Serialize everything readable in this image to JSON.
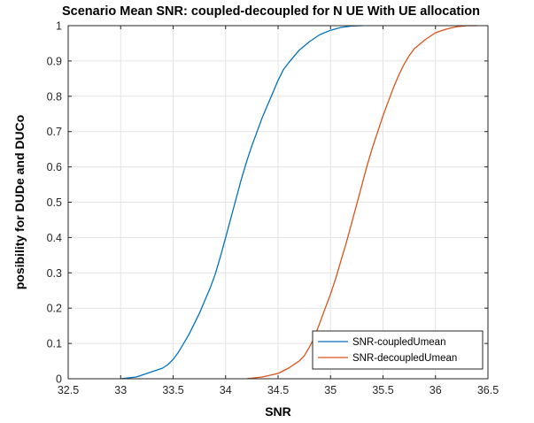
{
  "chart_data": {
    "type": "line",
    "title": "Scenario Mean SNR: coupled-decoupled for N UE With UE allocation",
    "xlabel": "SNR",
    "ylabel": "posibility for DUDe and DUCo",
    "xlim": [
      32.5,
      36.5
    ],
    "ylim": [
      0,
      1
    ],
    "xticks": [
      32.5,
      33,
      33.5,
      34,
      34.5,
      35,
      35.5,
      36,
      36.5
    ],
    "xtick_labels": [
      "32.5",
      "33",
      "33.5",
      "34",
      "34.5",
      "35",
      "35.5",
      "36",
      "36.5"
    ],
    "yticks": [
      0,
      0.1,
      0.2,
      0.3,
      0.4,
      0.5,
      0.6,
      0.7,
      0.8,
      0.9,
      1
    ],
    "ytick_labels": [
      "0",
      "0.1",
      "0.2",
      "0.3",
      "0.4",
      "0.5",
      "0.6",
      "0.7",
      "0.8",
      "0.9",
      "1"
    ],
    "grid": true,
    "legend_position": "bottom-right",
    "series": [
      {
        "name": "SNR-coupledUmean",
        "color": "#0072BD",
        "x": [
          33.0,
          33.15,
          33.3,
          33.4,
          33.45,
          33.5,
          33.55,
          33.6,
          33.65,
          33.7,
          33.75,
          33.8,
          33.85,
          33.9,
          33.95,
          34.0,
          34.05,
          34.1,
          34.15,
          34.2,
          34.25,
          34.3,
          34.35,
          34.4,
          34.45,
          34.5,
          34.55,
          34.6,
          34.7,
          34.8,
          34.9,
          35.0,
          35.1,
          35.2,
          35.3
        ],
        "y": [
          0.0,
          0.005,
          0.02,
          0.03,
          0.04,
          0.055,
          0.075,
          0.1,
          0.125,
          0.155,
          0.185,
          0.22,
          0.255,
          0.295,
          0.345,
          0.4,
          0.455,
          0.51,
          0.565,
          0.615,
          0.66,
          0.7,
          0.74,
          0.775,
          0.81,
          0.845,
          0.875,
          0.895,
          0.93,
          0.955,
          0.975,
          0.987,
          0.995,
          0.999,
          1.0
        ]
      },
      {
        "name": "SNR-decoupledUmean",
        "color": "#D95319",
        "x": [
          34.2,
          34.35,
          34.5,
          34.6,
          34.7,
          34.75,
          34.8,
          34.85,
          34.9,
          34.95,
          35.0,
          35.05,
          35.1,
          35.15,
          35.2,
          35.25,
          35.3,
          35.35,
          35.4,
          35.45,
          35.5,
          35.55,
          35.6,
          35.65,
          35.7,
          35.75,
          35.8,
          35.9,
          36.0,
          36.1,
          36.2,
          36.3,
          36.4
        ],
        "y": [
          0.0,
          0.005,
          0.015,
          0.03,
          0.05,
          0.065,
          0.09,
          0.12,
          0.16,
          0.2,
          0.24,
          0.285,
          0.335,
          0.385,
          0.44,
          0.495,
          0.55,
          0.605,
          0.655,
          0.7,
          0.745,
          0.785,
          0.825,
          0.86,
          0.89,
          0.915,
          0.935,
          0.96,
          0.98,
          0.99,
          0.997,
          1.0,
          1.0
        ]
      }
    ]
  }
}
